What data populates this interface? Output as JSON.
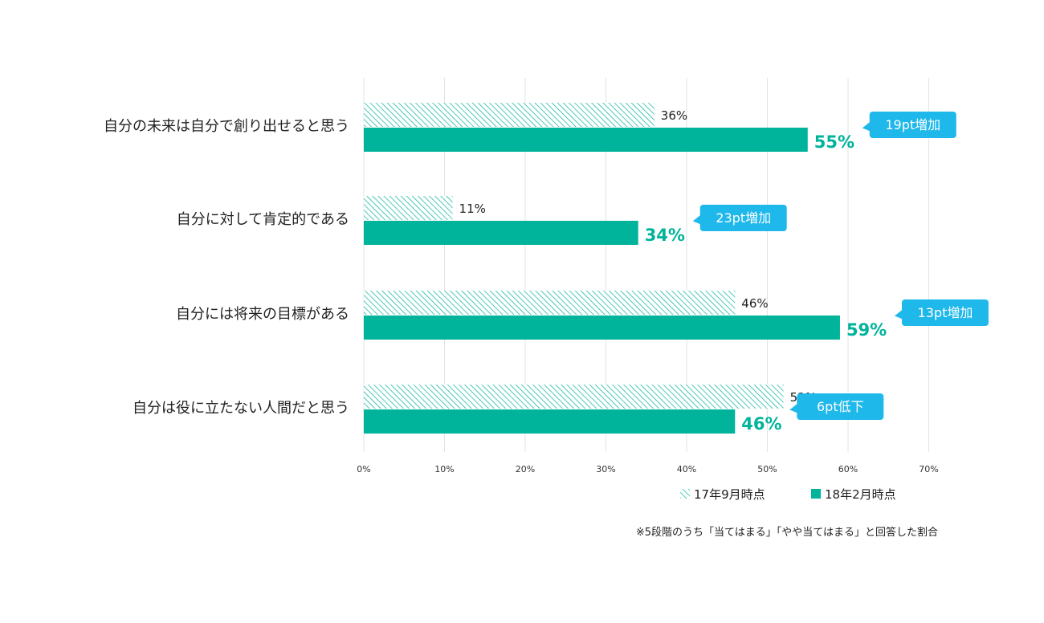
{
  "chart_data": {
    "type": "bar",
    "orientation": "horizontal",
    "categories": [
      "自分の未来は自分で創り出せると思う",
      "自分に対して肯定的である",
      "自分には将来の目標がある",
      "自分は役に立たない人間だと思う"
    ],
    "series": [
      {
        "name": "17年9月時点",
        "values": [
          36,
          11,
          46,
          52
        ],
        "labels": [
          "36%",
          "11%",
          "46%",
          "52%"
        ],
        "pattern": "hatched"
      },
      {
        "name": "18年2月時点",
        "values": [
          55,
          34,
          59,
          46
        ],
        "labels": [
          "55%",
          "34%",
          "59%",
          "46%"
        ],
        "pattern": "solid"
      }
    ],
    "changes": [
      "19pt増加",
      "23pt増加",
      "13pt増加",
      "6pt低下"
    ],
    "xticks": [
      "0%",
      "10%",
      "20%",
      "30%",
      "40%",
      "50%",
      "60%",
      "70%"
    ],
    "xlim": [
      0,
      70
    ],
    "grid": true,
    "legend_position": "bottom-right",
    "note": "※5段階のうち「当てはまる」「やや当てはまる」と回答した割合",
    "colors": {
      "bar": "#00b39b",
      "hatch": "#00b39b",
      "callout": "#1fb8eb",
      "grid": "#e3e3e3"
    }
  }
}
